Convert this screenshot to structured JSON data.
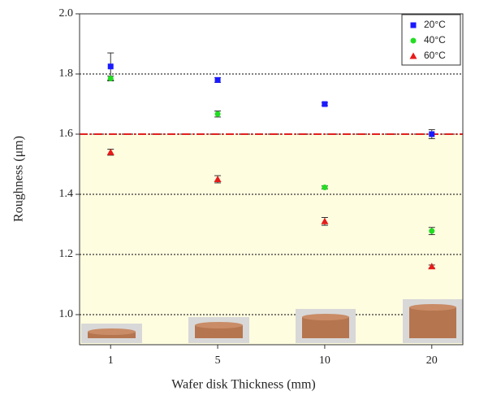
{
  "chart_data": {
    "type": "scatter",
    "x_label": "Wafer disk Thickness (mm)",
    "y_label": "Roughness (μm)",
    "categories": [
      "1",
      "5",
      "10",
      "20"
    ],
    "series": [
      {
        "name": "20°C",
        "color": "#1a1aff",
        "marker": "square",
        "values": [
          1.825,
          1.78,
          1.7,
          1.6
        ],
        "errors": [
          0.045,
          0.008,
          0.005,
          0.015
        ]
      },
      {
        "name": "40°C",
        "color": "#22dd22",
        "marker": "circle",
        "values": [
          1.785,
          1.667,
          1.423,
          1.278
        ],
        "errors": [
          0.008,
          0.01,
          0.005,
          0.012
        ]
      },
      {
        "name": "60°C",
        "color": "#e81a1a",
        "marker": "triangle",
        "values": [
          1.54,
          1.45,
          1.31,
          1.16
        ],
        "errors": [
          0.01,
          0.012,
          0.013,
          0.005
        ]
      }
    ],
    "reference_line": 1.6,
    "ylim": [
      0.9,
      2.0
    ],
    "yticks": [
      {
        "value": 1.0,
        "label": "1.0"
      },
      1.2,
      1.4,
      1.6,
      1.8,
      {
        "value": 2.0,
        "label": "2.0"
      }
    ],
    "grid": true,
    "legend": "top-right"
  }
}
